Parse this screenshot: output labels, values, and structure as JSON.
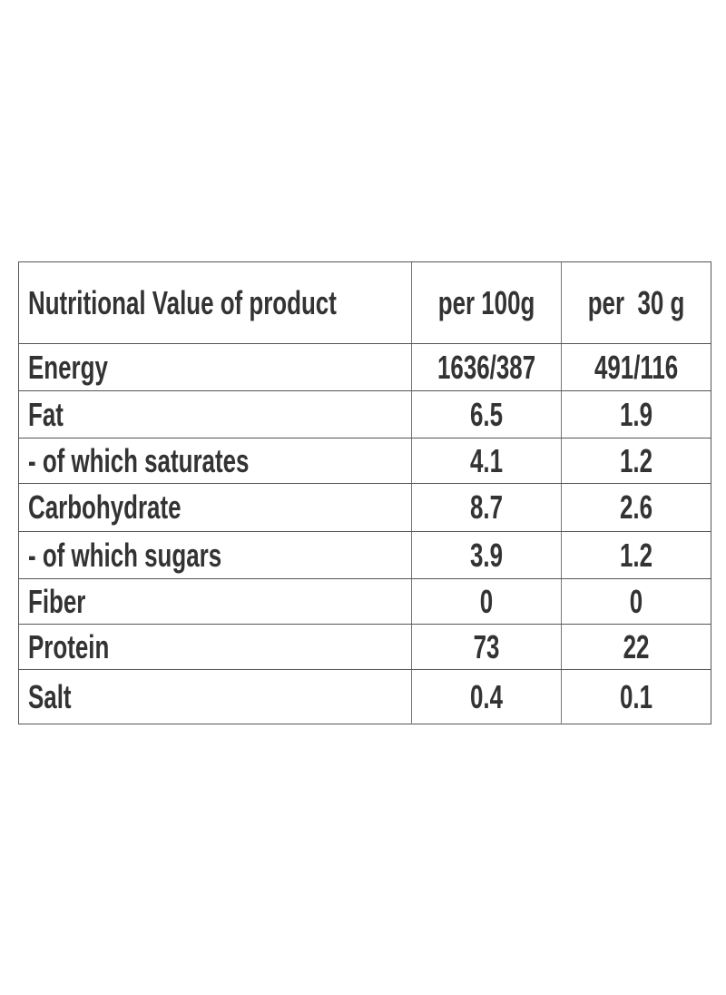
{
  "table": {
    "header": [
      "Nutritional Value of product",
      "per 100g",
      "per  30 g"
    ],
    "rows": [
      [
        "Energy",
        "1636/387",
        "491/116"
      ],
      [
        "Fat",
        "6.5",
        "1.9"
      ],
      [
        "- of which saturates",
        "4.1",
        "1.2"
      ],
      [
        "Carbohydrate",
        "8.7",
        "2.6"
      ],
      [
        "- of which sugars",
        "3.9",
        "1.2"
      ],
      [
        "Fiber",
        "0",
        "0"
      ],
      [
        "Protein",
        "73",
        "22"
      ],
      [
        "Salt",
        "0.4",
        "0.1"
      ]
    ]
  }
}
